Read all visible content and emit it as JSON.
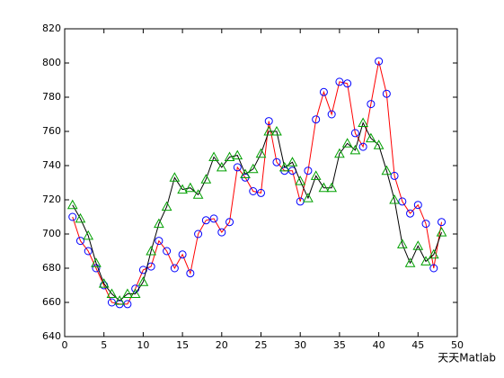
{
  "chart_data": {
    "type": "line",
    "x": [
      1,
      2,
      3,
      4,
      5,
      6,
      7,
      8,
      9,
      10,
      11,
      12,
      13,
      14,
      15,
      16,
      17,
      18,
      19,
      20,
      21,
      22,
      23,
      24,
      25,
      26,
      27,
      28,
      29,
      30,
      31,
      32,
      33,
      34,
      35,
      36,
      37,
      38,
      39,
      40,
      41,
      42,
      43,
      44,
      45,
      46,
      47,
      48
    ],
    "series": [
      {
        "color": "#ff0000",
        "marker": "circle",
        "marker_color": "#0000ff",
        "values": [
          710,
          696,
          690,
          680,
          670,
          660,
          659,
          659,
          668,
          679,
          681,
          696,
          690,
          680,
          688,
          677,
          700,
          708,
          709,
          701,
          707,
          739,
          733,
          725,
          724,
          766,
          742,
          737,
          737,
          719,
          737,
          767,
          783,
          770,
          789,
          788,
          759,
          751,
          776,
          801,
          782,
          734,
          719,
          712,
          717,
          706,
          680,
          707
        ]
      },
      {
        "color": "#000000",
        "marker": "triangle",
        "marker_color": "#00a000",
        "values": [
          717,
          709,
          699,
          683,
          671,
          665,
          661,
          665,
          665,
          672,
          690,
          706,
          716,
          733,
          726,
          727,
          723,
          732,
          745,
          739,
          745,
          746,
          735,
          738,
          747,
          760,
          760,
          739,
          742,
          731,
          721,
          734,
          727,
          727,
          747,
          753,
          749,
          765,
          756,
          752,
          737,
          720,
          694,
          683,
          693,
          684,
          688,
          701
        ]
      }
    ],
    "xlim": [
      0,
      50
    ],
    "xticks": [
      0,
      5,
      10,
      15,
      20,
      25,
      30,
      35,
      40,
      45,
      50
    ],
    "ylim": [
      640,
      820
    ],
    "yticks": [
      640,
      660,
      680,
      700,
      720,
      740,
      760,
      780,
      800,
      820
    ],
    "watermark": "天天Matlab"
  }
}
